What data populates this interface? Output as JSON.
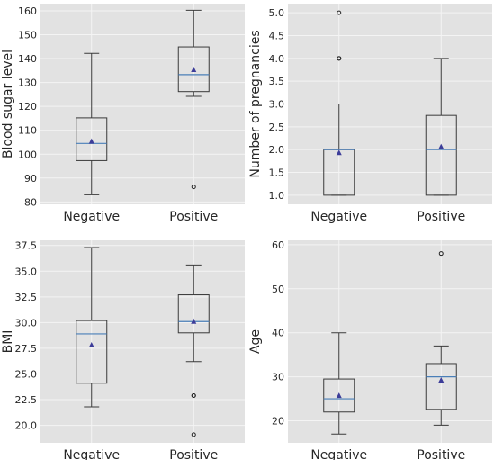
{
  "colors": {
    "plot_bg": "#e2e2e2",
    "grid": "#f4f4f4",
    "box": "#3a3a3a",
    "median": "#4a7fb8",
    "mean_marker": "#3d3d99"
  },
  "chart_data": [
    {
      "type": "box",
      "ylabel": "Blood sugar level",
      "categories": [
        "Negative",
        "Positive"
      ],
      "ylim": [
        79,
        163
      ],
      "yticks": [
        80,
        90,
        100,
        110,
        120,
        130,
        140,
        150,
        160
      ],
      "tick_format": 0,
      "boxes": [
        {
          "category": "Negative",
          "whisker_low": 83,
          "q1": 97.3,
          "median": 104.5,
          "q3": 115.2,
          "whisker_high": 142.2,
          "mean": 105.3,
          "outliers": []
        },
        {
          "category": "Positive",
          "whisker_low": 124.2,
          "q1": 126.2,
          "median": 133.3,
          "q3": 144.9,
          "whisker_high": 160.2,
          "mean": 135.3,
          "outliers": [
            86.3
          ]
        }
      ]
    },
    {
      "type": "box",
      "ylabel": "Number of pregnancies",
      "categories": [
        "Negative",
        "Positive"
      ],
      "ylim": [
        0.8,
        5.2
      ],
      "yticks": [
        1.0,
        1.5,
        2.0,
        2.5,
        3.0,
        3.5,
        4.0,
        4.5,
        5.0
      ],
      "tick_format": 1,
      "boxes": [
        {
          "category": "Negative",
          "whisker_low": 1.0,
          "q1": 1.0,
          "median": 2.0,
          "q3": 2.0,
          "whisker_high": 3.0,
          "mean": 1.93,
          "outliers": [
            4.0,
            4.0,
            5.0
          ]
        },
        {
          "category": "Positive",
          "whisker_low": 1.0,
          "q1": 1.0,
          "median": 2.0,
          "q3": 2.75,
          "whisker_high": 4.0,
          "mean": 2.06,
          "outliers": []
        }
      ]
    },
    {
      "type": "box",
      "ylabel": "BMI",
      "categories": [
        "Negative",
        "Positive"
      ],
      "ylim": [
        18.3,
        38.0
      ],
      "yticks": [
        20.0,
        22.5,
        25.0,
        27.5,
        30.0,
        32.5,
        35.0,
        37.5
      ],
      "tick_format": 1,
      "boxes": [
        {
          "category": "Negative",
          "whisker_low": 21.8,
          "q1": 24.1,
          "median": 28.9,
          "q3": 30.2,
          "whisker_high": 37.3,
          "mean": 27.8,
          "outliers": []
        },
        {
          "category": "Positive",
          "whisker_low": 26.2,
          "q1": 29.0,
          "median": 30.1,
          "q3": 32.7,
          "whisker_high": 35.6,
          "mean": 30.1,
          "outliers": [
            22.9,
            22.9,
            19.1
          ]
        }
      ]
    },
    {
      "type": "box",
      "ylabel": "Age",
      "categories": [
        "Negative",
        "Positive"
      ],
      "ylim": [
        15,
        61
      ],
      "yticks": [
        20,
        30,
        40,
        50,
        60
      ],
      "tick_format": 0,
      "boxes": [
        {
          "category": "Negative",
          "whisker_low": 17,
          "q1": 22,
          "median": 25,
          "q3": 29.5,
          "whisker_high": 40,
          "mean": 25.7,
          "outliers": []
        },
        {
          "category": "Positive",
          "whisker_low": 19,
          "q1": 22.6,
          "median": 30,
          "q3": 33,
          "whisker_high": 37,
          "mean": 29.2,
          "outliers": [
            58
          ]
        }
      ]
    }
  ]
}
